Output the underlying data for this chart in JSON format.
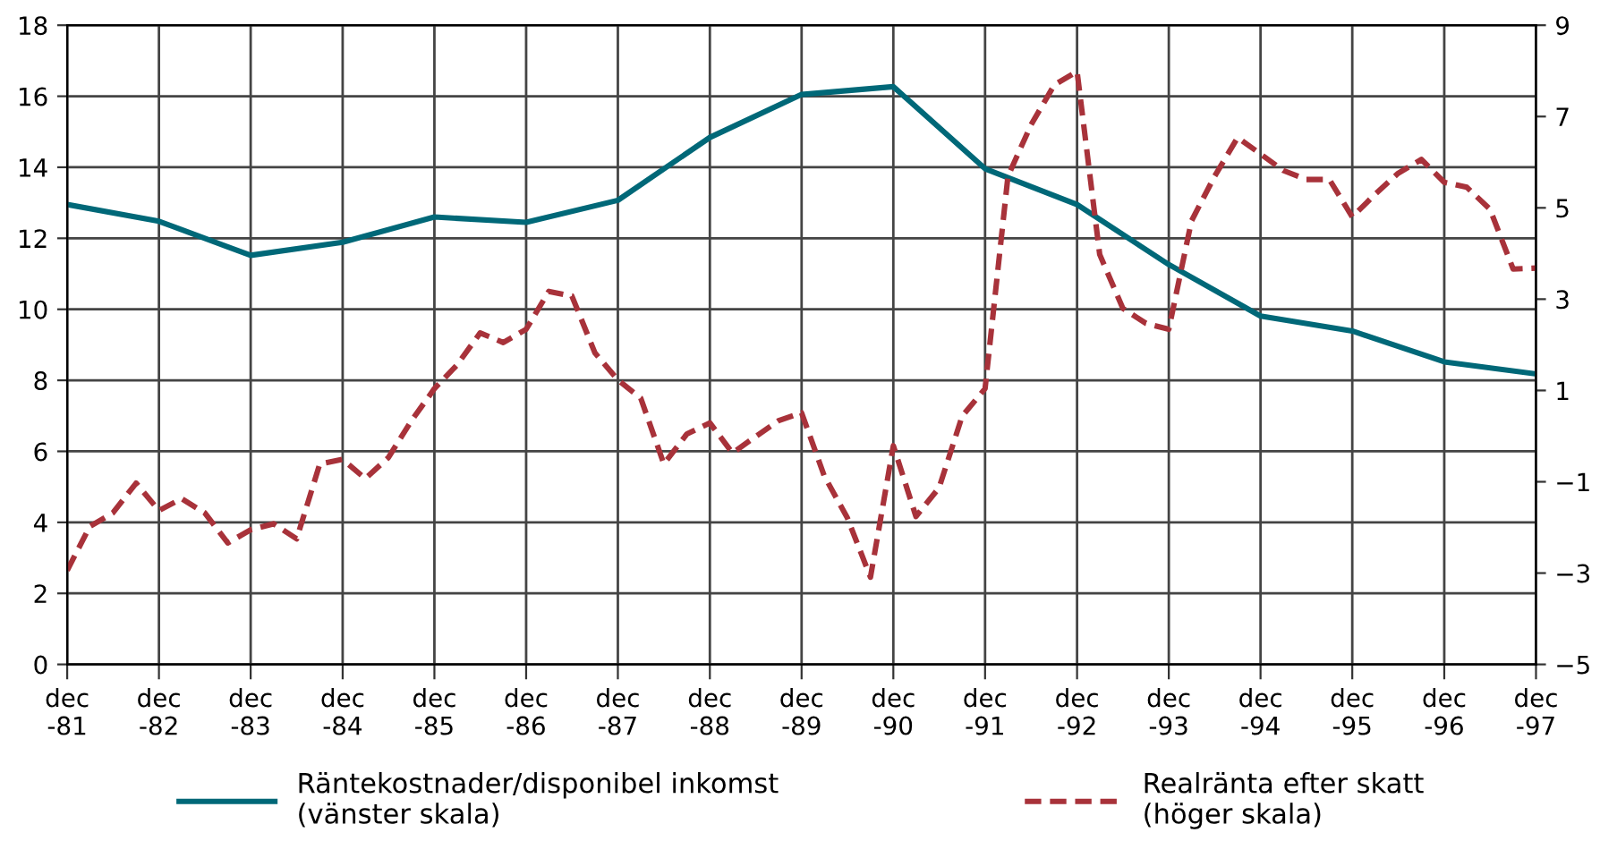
{
  "chart_data": {
    "type": "line",
    "x": [
      "1981-12",
      "1982-12",
      "1983-12",
      "1984-12",
      "1985-12",
      "1986-12",
      "1987-12",
      "1988-12",
      "1989-12",
      "1990-12",
      "1991-12",
      "1992-12",
      "1993-12",
      "1994-12",
      "1995-12",
      "1996-12",
      "1997-12"
    ],
    "series": [
      {
        "name": "Räntekostnader/disponibel inkomst\n(vänster skala)",
        "color": "#006878",
        "line_style": "solid",
        "values": [
          12.95,
          12.48,
          11.52,
          11.89,
          12.6,
          12.45,
          13.07,
          14.84,
          16.05,
          16.27,
          13.96,
          12.95,
          11.26,
          9.81,
          9.39,
          8.52,
          8.18
        ]
      },
      {
        "name": "Realränta efter skatt\n(höger skala)",
        "color": "#a8323a",
        "line_style": "dashed",
        "axis": "y2",
        "x": [
          "1981-12",
          "1982-03",
          "1982-06",
          "1982-09",
          "1982-12",
          "1983-03",
          "1983-06",
          "1983-09",
          "1983-12",
          "1984-03",
          "1984-06",
          "1984-09",
          "1984-12",
          "1985-03",
          "1985-06",
          "1985-09",
          "1985-12",
          "1986-03",
          "1986-06",
          "1986-09",
          "1986-12",
          "1987-03",
          "1987-06",
          "1987-09",
          "1987-12",
          "1988-03",
          "1988-06",
          "1988-09",
          "1988-12",
          "1989-03",
          "1989-06",
          "1989-09",
          "1989-12",
          "1990-03",
          "1990-06",
          "1990-09",
          "1990-12",
          "1991-03",
          "1991-06",
          "1991-09",
          "1991-12",
          "1992-03",
          "1992-06",
          "1992-09",
          "1992-12",
          "1993-03",
          "1993-06",
          "1993-09",
          "1993-12",
          "1994-03",
          "1994-06",
          "1994-09",
          "1994-12",
          "1995-03",
          "1995-06",
          "1995-09",
          "1995-12",
          "1996-03",
          "1996-06",
          "1996-09",
          "1996-12",
          "1997-03",
          "1997-06",
          "1997-09",
          "1997-12"
        ],
        "values": [
          -2.94,
          -1.98,
          -1.68,
          -1.03,
          -1.63,
          -1.37,
          -1.68,
          -2.34,
          -2.05,
          -1.92,
          -2.25,
          -0.61,
          -0.51,
          -0.93,
          -0.47,
          0.34,
          1.04,
          1.56,
          2.26,
          2.05,
          2.34,
          3.17,
          3.07,
          1.82,
          1.23,
          0.83,
          -0.61,
          0.05,
          0.29,
          -0.37,
          -0.01,
          0.34,
          0.51,
          -0.87,
          -1.79,
          -3.09,
          -0.21,
          -1.76,
          -1.13,
          0.44,
          1.04,
          5.69,
          6.82,
          7.69,
          7.99,
          3.98,
          2.8,
          2.47,
          2.34,
          4.71,
          5.69,
          6.54,
          6.18,
          5.82,
          5.62,
          5.62,
          4.8,
          5.3,
          5.76,
          6.06,
          5.56,
          5.45,
          4.97,
          3.66,
          3.68
        ]
      }
    ],
    "xlim": [
      "1981-12",
      "1997-12"
    ],
    "xticks": [
      {
        "value": "1981-12",
        "label": "dec\n-81"
      },
      {
        "value": "1982-12",
        "label": "dec\n-82"
      },
      {
        "value": "1983-12",
        "label": "dec\n-83"
      },
      {
        "value": "1984-12",
        "label": "dec\n-84"
      },
      {
        "value": "1985-12",
        "label": "dec\n-85"
      },
      {
        "value": "1986-12",
        "label": "dec\n-86"
      },
      {
        "value": "1987-12",
        "label": "dec\n-87"
      },
      {
        "value": "1988-12",
        "label": "dec\n-88"
      },
      {
        "value": "1989-12",
        "label": "dec\n-89"
      },
      {
        "value": "1990-12",
        "label": "dec\n-90"
      },
      {
        "value": "1991-12",
        "label": "dec\n-91"
      },
      {
        "value": "1992-12",
        "label": "dec\n-92"
      },
      {
        "value": "1993-12",
        "label": "dec\n-93"
      },
      {
        "value": "1994-12",
        "label": "dec\n-94"
      },
      {
        "value": "1995-12",
        "label": "dec\n-95"
      },
      {
        "value": "1996-12",
        "label": "dec\n-96"
      },
      {
        "value": "1997-12",
        "label": "dec\n-97"
      }
    ],
    "ylim": [
      0,
      18
    ],
    "yticks": [
      0,
      2,
      4,
      6,
      8,
      10,
      12,
      14,
      16,
      18
    ],
    "y2lim": [
      -5,
      9
    ],
    "y2ticks": [
      {
        "value": -5,
        "label": "−5"
      },
      {
        "value": -3,
        "label": "−3"
      },
      {
        "value": -1,
        "label": "−1"
      },
      1,
      3,
      5,
      7,
      9
    ],
    "grid": true,
    "legend": "bottom",
    "marker": "none"
  }
}
